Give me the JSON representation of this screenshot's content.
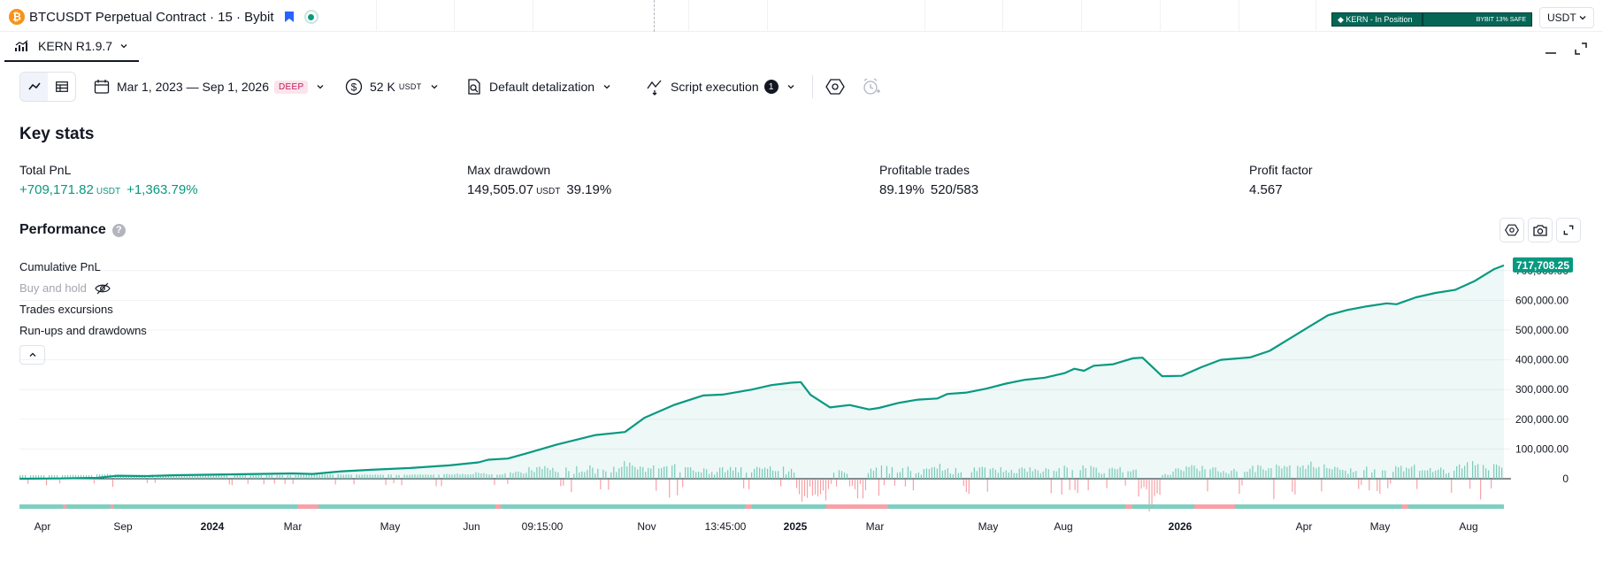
{
  "header": {
    "symbol": "BTCUSDT Perpetual Contract · 15 · Bybit",
    "icons": [
      "btc-icon",
      "flag-icon",
      "live-dot-icon"
    ],
    "position_badge": "◆ KERN - In Position",
    "safe_badge": "BYBIT 13% SAFE",
    "currency": "USDT"
  },
  "tab": {
    "label": "KERN R1.9.7"
  },
  "toolbar": {
    "date_range": "Mar 1, 2023 — Sep 1, 2026",
    "deep_badge": "DEEP",
    "capital": "52 K",
    "capital_unit": "USDT",
    "detalization": "Default detalization",
    "script_execution": "Script execution",
    "script_count": "1"
  },
  "key_stats": {
    "title": "Key stats",
    "total_pnl": {
      "label": "Total PnL",
      "value": "+709,171.82",
      "unit": "USDT",
      "percent": "+1,363.79%"
    },
    "max_drawdown": {
      "label": "Max drawdown",
      "value": "149,505.07",
      "unit": "USDT",
      "percent": "39.19%"
    },
    "profitable_trades": {
      "label": "Profitable trades",
      "percent": "89.19%",
      "ratio": "520/583"
    },
    "profit_factor": {
      "label": "Profit factor",
      "value": "4.567"
    }
  },
  "performance": {
    "title": "Performance",
    "legend": {
      "cumulative": "Cumulative PnL",
      "buy_hold": "Buy and hold",
      "excursions": "Trades excursions",
      "runups": "Run-ups and drawdowns"
    }
  },
  "colors": {
    "accent": "#089981",
    "negative": "#f7525f",
    "line": "#089981"
  },
  "chart_data": {
    "type": "line",
    "series": [
      {
        "name": "Cumulative PnL",
        "points": [
          [
            0,
            0
          ],
          [
            4,
            1000
          ],
          [
            8,
            3000
          ],
          [
            10,
            10000
          ],
          [
            13,
            9000
          ],
          [
            16,
            12000
          ],
          [
            22,
            15000
          ],
          [
            28,
            18000
          ],
          [
            30,
            16000
          ],
          [
            33,
            25000
          ],
          [
            36,
            30000
          ],
          [
            40,
            36000
          ],
          [
            44,
            45000
          ],
          [
            47,
            55000
          ],
          [
            48,
            64000
          ],
          [
            50,
            68000
          ],
          [
            52,
            86000
          ],
          [
            55,
            115000
          ],
          [
            59,
            147000
          ],
          [
            62,
            157000
          ],
          [
            64,
            205000
          ],
          [
            67,
            248000
          ],
          [
            70,
            280000
          ],
          [
            72,
            283000
          ],
          [
            75,
            300000
          ],
          [
            77,
            315000
          ],
          [
            79,
            323000
          ],
          [
            80,
            325000
          ],
          [
            81,
            282000
          ],
          [
            83,
            240000
          ],
          [
            85,
            248000
          ],
          [
            87,
            233000
          ],
          [
            88,
            238000
          ],
          [
            90,
            255000
          ],
          [
            92,
            266000
          ],
          [
            94,
            270000
          ],
          [
            95,
            285000
          ],
          [
            97,
            290000
          ],
          [
            99,
            303000
          ],
          [
            101,
            320000
          ],
          [
            103,
            333000
          ],
          [
            105,
            340000
          ],
          [
            107,
            355000
          ],
          [
            108,
            370000
          ],
          [
            109,
            363000
          ],
          [
            110,
            380000
          ],
          [
            112,
            385000
          ],
          [
            114,
            405000
          ],
          [
            115,
            407000
          ],
          [
            117,
            345000
          ],
          [
            119,
            346000
          ],
          [
            121,
            375000
          ],
          [
            123,
            400000
          ],
          [
            126,
            408000
          ],
          [
            128,
            430000
          ],
          [
            130,
            470000
          ],
          [
            132,
            510000
          ],
          [
            134,
            550000
          ],
          [
            136,
            568000
          ],
          [
            138,
            580000
          ],
          [
            140,
            590000
          ],
          [
            141,
            587000
          ],
          [
            143,
            610000
          ],
          [
            145,
            625000
          ],
          [
            147,
            635000
          ],
          [
            149,
            665000
          ],
          [
            151,
            705000
          ],
          [
            152,
            717708
          ]
        ]
      }
    ],
    "last_value_label": "717,708.25",
    "y_ticks": [
      "0",
      "100,000.00",
      "200,000.00",
      "300,000.00",
      "400,000.00",
      "500,000.00",
      "600,000.00",
      "700,000.00"
    ],
    "x_ticks": [
      {
        "label": "Apr",
        "bold": false
      },
      {
        "label": "Sep",
        "bold": false
      },
      {
        "label": "2024",
        "bold": true
      },
      {
        "label": "Mar",
        "bold": false
      },
      {
        "label": "May",
        "bold": false
      },
      {
        "label": "Jun",
        "bold": false
      },
      {
        "label": "09:15:00",
        "bold": false
      },
      {
        "label": "Nov",
        "bold": false
      },
      {
        "label": "13:45:00",
        "bold": false
      },
      {
        "label": "2025",
        "bold": true
      },
      {
        "label": "Mar",
        "bold": false
      },
      {
        "label": "May",
        "bold": false
      },
      {
        "label": "Aug",
        "bold": false
      },
      {
        "label": "2026",
        "bold": true
      },
      {
        "label": "Apr",
        "bold": false
      },
      {
        "label": "May",
        "bold": false
      },
      {
        "label": "Aug",
        "bold": false
      }
    ],
    "ylim": [
      0,
      740000
    ],
    "grid": true,
    "legend_position": "top-left"
  }
}
